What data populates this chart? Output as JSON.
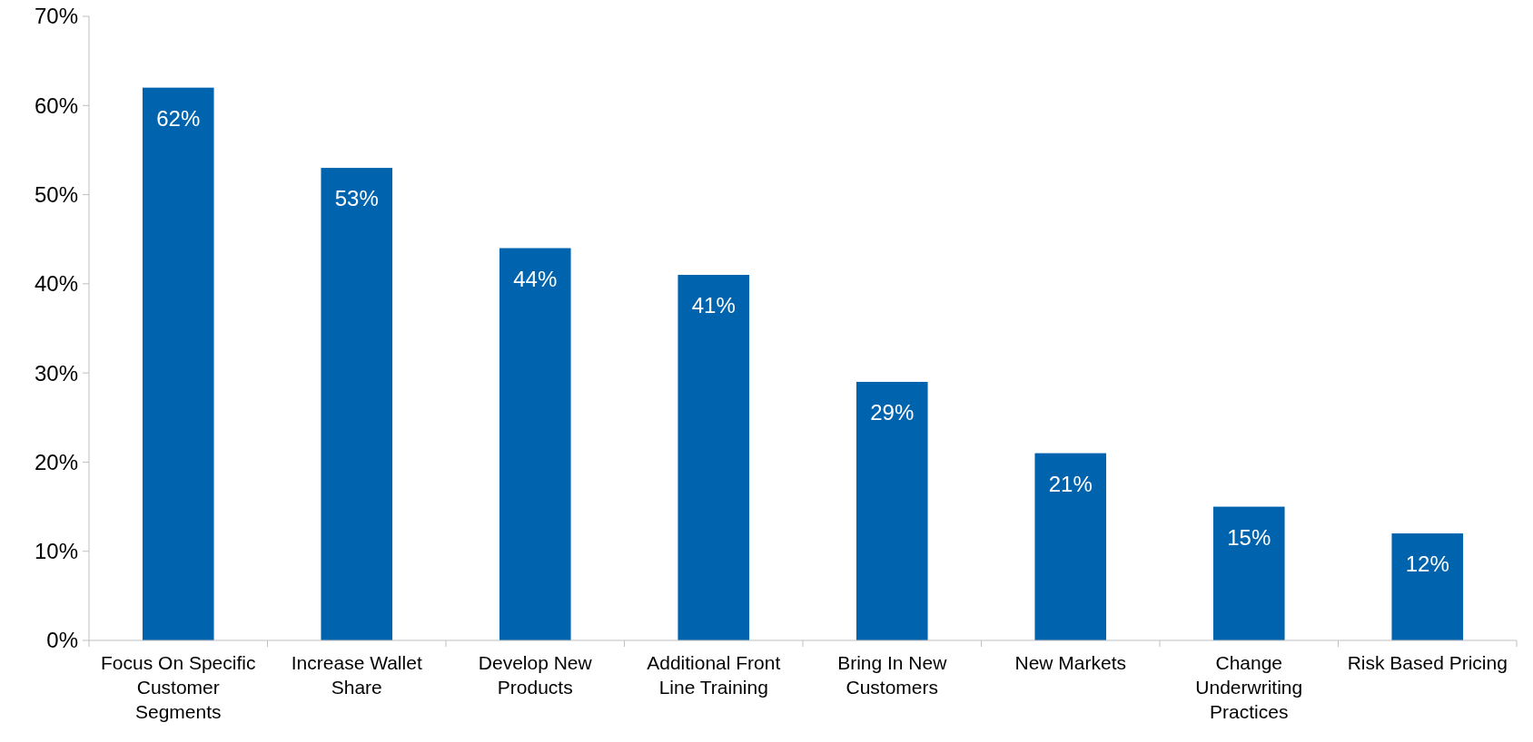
{
  "chart_data": {
    "type": "bar",
    "categories": [
      "Focus On Specific Customer Segments",
      "Increase Wallet Share",
      "Develop New Products",
      "Additional Front Line Training",
      "Bring In New Customers",
      "New Markets",
      "Change Underwriting Practices",
      "Risk Based Pricing"
    ],
    "values": [
      62,
      53,
      44,
      41,
      29,
      21,
      15,
      12
    ],
    "value_labels": [
      "62%",
      "53%",
      "44%",
      "41%",
      "29%",
      "21%",
      "15%",
      "12%"
    ],
    "color": "#0063ad",
    "ylim": [
      0,
      70
    ],
    "yticks": [
      {
        "value": 0,
        "label": "0%"
      },
      {
        "value": 10,
        "label": "10%"
      },
      {
        "value": 20,
        "label": "20%"
      },
      {
        "value": 30,
        "label": "30%"
      },
      {
        "value": 40,
        "label": "40%"
      },
      {
        "value": 50,
        "label": "50%"
      },
      {
        "value": 60,
        "label": "60%"
      },
      {
        "value": 70,
        "label": "70%"
      }
    ],
    "grid": false
  }
}
